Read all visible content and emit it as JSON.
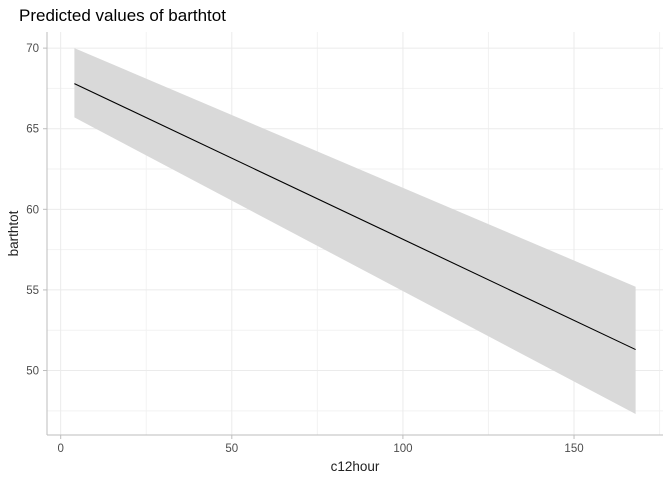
{
  "chart_data": {
    "type": "line",
    "title": "Predicted values of barthtot",
    "xlabel": "c12hour",
    "ylabel": "barthtot",
    "xlim": [
      -4,
      176
    ],
    "ylim": [
      46,
      71
    ],
    "x_ticks": [
      0,
      50,
      100,
      150
    ],
    "y_ticks": [
      50,
      55,
      60,
      65,
      70
    ],
    "x_tick_labels": [
      "0",
      "50",
      "100",
      "150"
    ],
    "y_tick_labels": [
      "50",
      "55",
      "60",
      "65",
      "70"
    ],
    "grid": true,
    "legend": "none",
    "series": [
      {
        "x": [
          4,
          168
        ],
        "y": [
          67.8,
          51.3
        ],
        "ci_lower": [
          65.7,
          47.3
        ],
        "ci_upper": [
          70.0,
          55.2
        ]
      }
    ],
    "colors": {
      "line": "#000000",
      "ribbon": "#d9d9d9",
      "grid": "#ebebeb",
      "axis": "#bdbdbd"
    }
  }
}
